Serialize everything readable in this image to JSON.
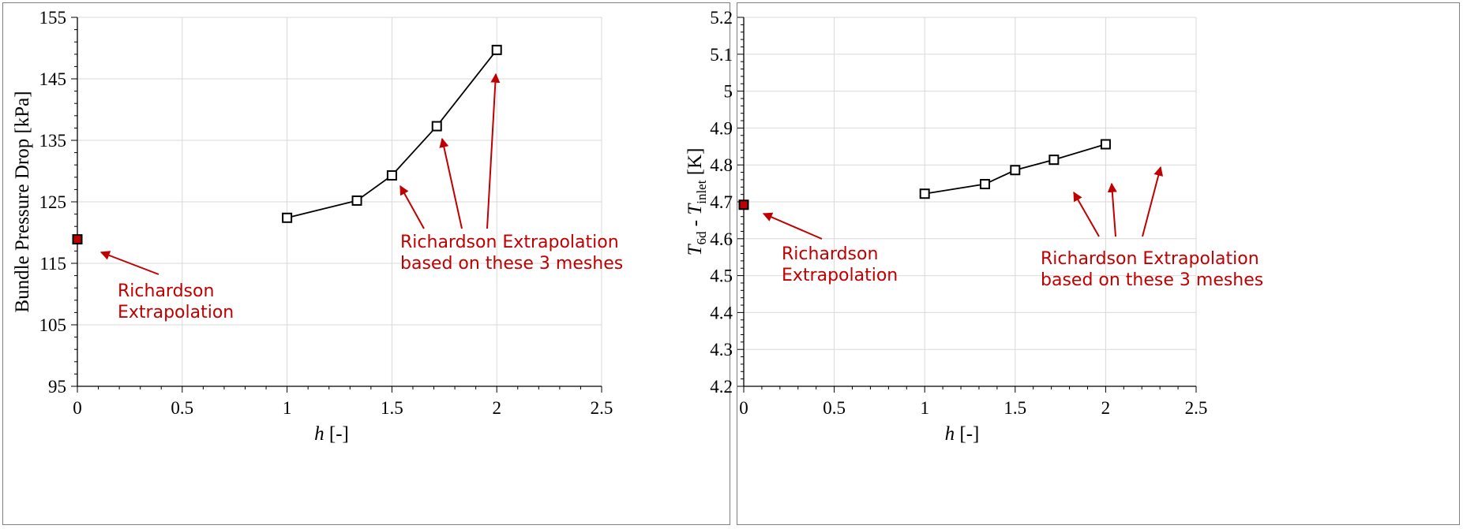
{
  "colors": {
    "annotation": "#c00000",
    "series": "#000000",
    "extrapolated_marker": "#c00000",
    "grid": "#d9d9d9"
  },
  "chart_data": [
    {
      "type": "line",
      "xlabel": "h [-]",
      "ylabel": "Bundle Pressure Drop [kPa]",
      "xlim": [
        0,
        2.5
      ],
      "ylim": [
        95,
        155
      ],
      "x_ticks": [
        "0",
        "0.5",
        "1",
        "1.5",
        "2",
        "2.5"
      ],
      "y_ticks": [
        "95",
        "105",
        "115",
        "125",
        "135",
        "145",
        "155"
      ],
      "grid": true,
      "series": [
        {
          "x": [
            1,
            1.333,
            1.5,
            1.714,
            2
          ],
          "y": [
            122.4,
            125.2,
            129.3,
            137.3,
            149.7
          ],
          "marker": "square-open"
        }
      ],
      "extrapolated_point": {
        "x": 0,
        "y": 118.9
      },
      "annotations": {
        "richardson_label": [
          "Richardson",
          "Extrapolation"
        ],
        "meshes_label": [
          "Richardson Extrapolation",
          "based on these 3 meshes"
        ]
      }
    },
    {
      "type": "line",
      "xlabel": "h [-]",
      "ylabel": "T6d - Tinlet [K]",
      "xlim": [
        0,
        2.5
      ],
      "ylim": [
        4.2,
        5.2
      ],
      "x_ticks": [
        "0",
        "0.5",
        "1",
        "1.5",
        "2",
        "2.5"
      ],
      "y_ticks": [
        "4.2",
        "4.3",
        "4.4",
        "4.5",
        "4.6",
        "4.7",
        "4.8",
        "4.9",
        "5",
        "5.1",
        "5.2"
      ],
      "grid": true,
      "series": [
        {
          "x": [
            1,
            1.333,
            1.5,
            1.714,
            2
          ],
          "y": [
            4.722,
            4.748,
            4.786,
            4.814,
            4.856
          ],
          "marker": "square-open"
        }
      ],
      "extrapolated_point": {
        "x": 0,
        "y": 4.692
      },
      "annotations": {
        "richardson_label": [
          "Richardson",
          "Extrapolation"
        ],
        "meshes_label": [
          "Richardson Extrapolation",
          "based on these 3 meshes"
        ]
      }
    }
  ]
}
